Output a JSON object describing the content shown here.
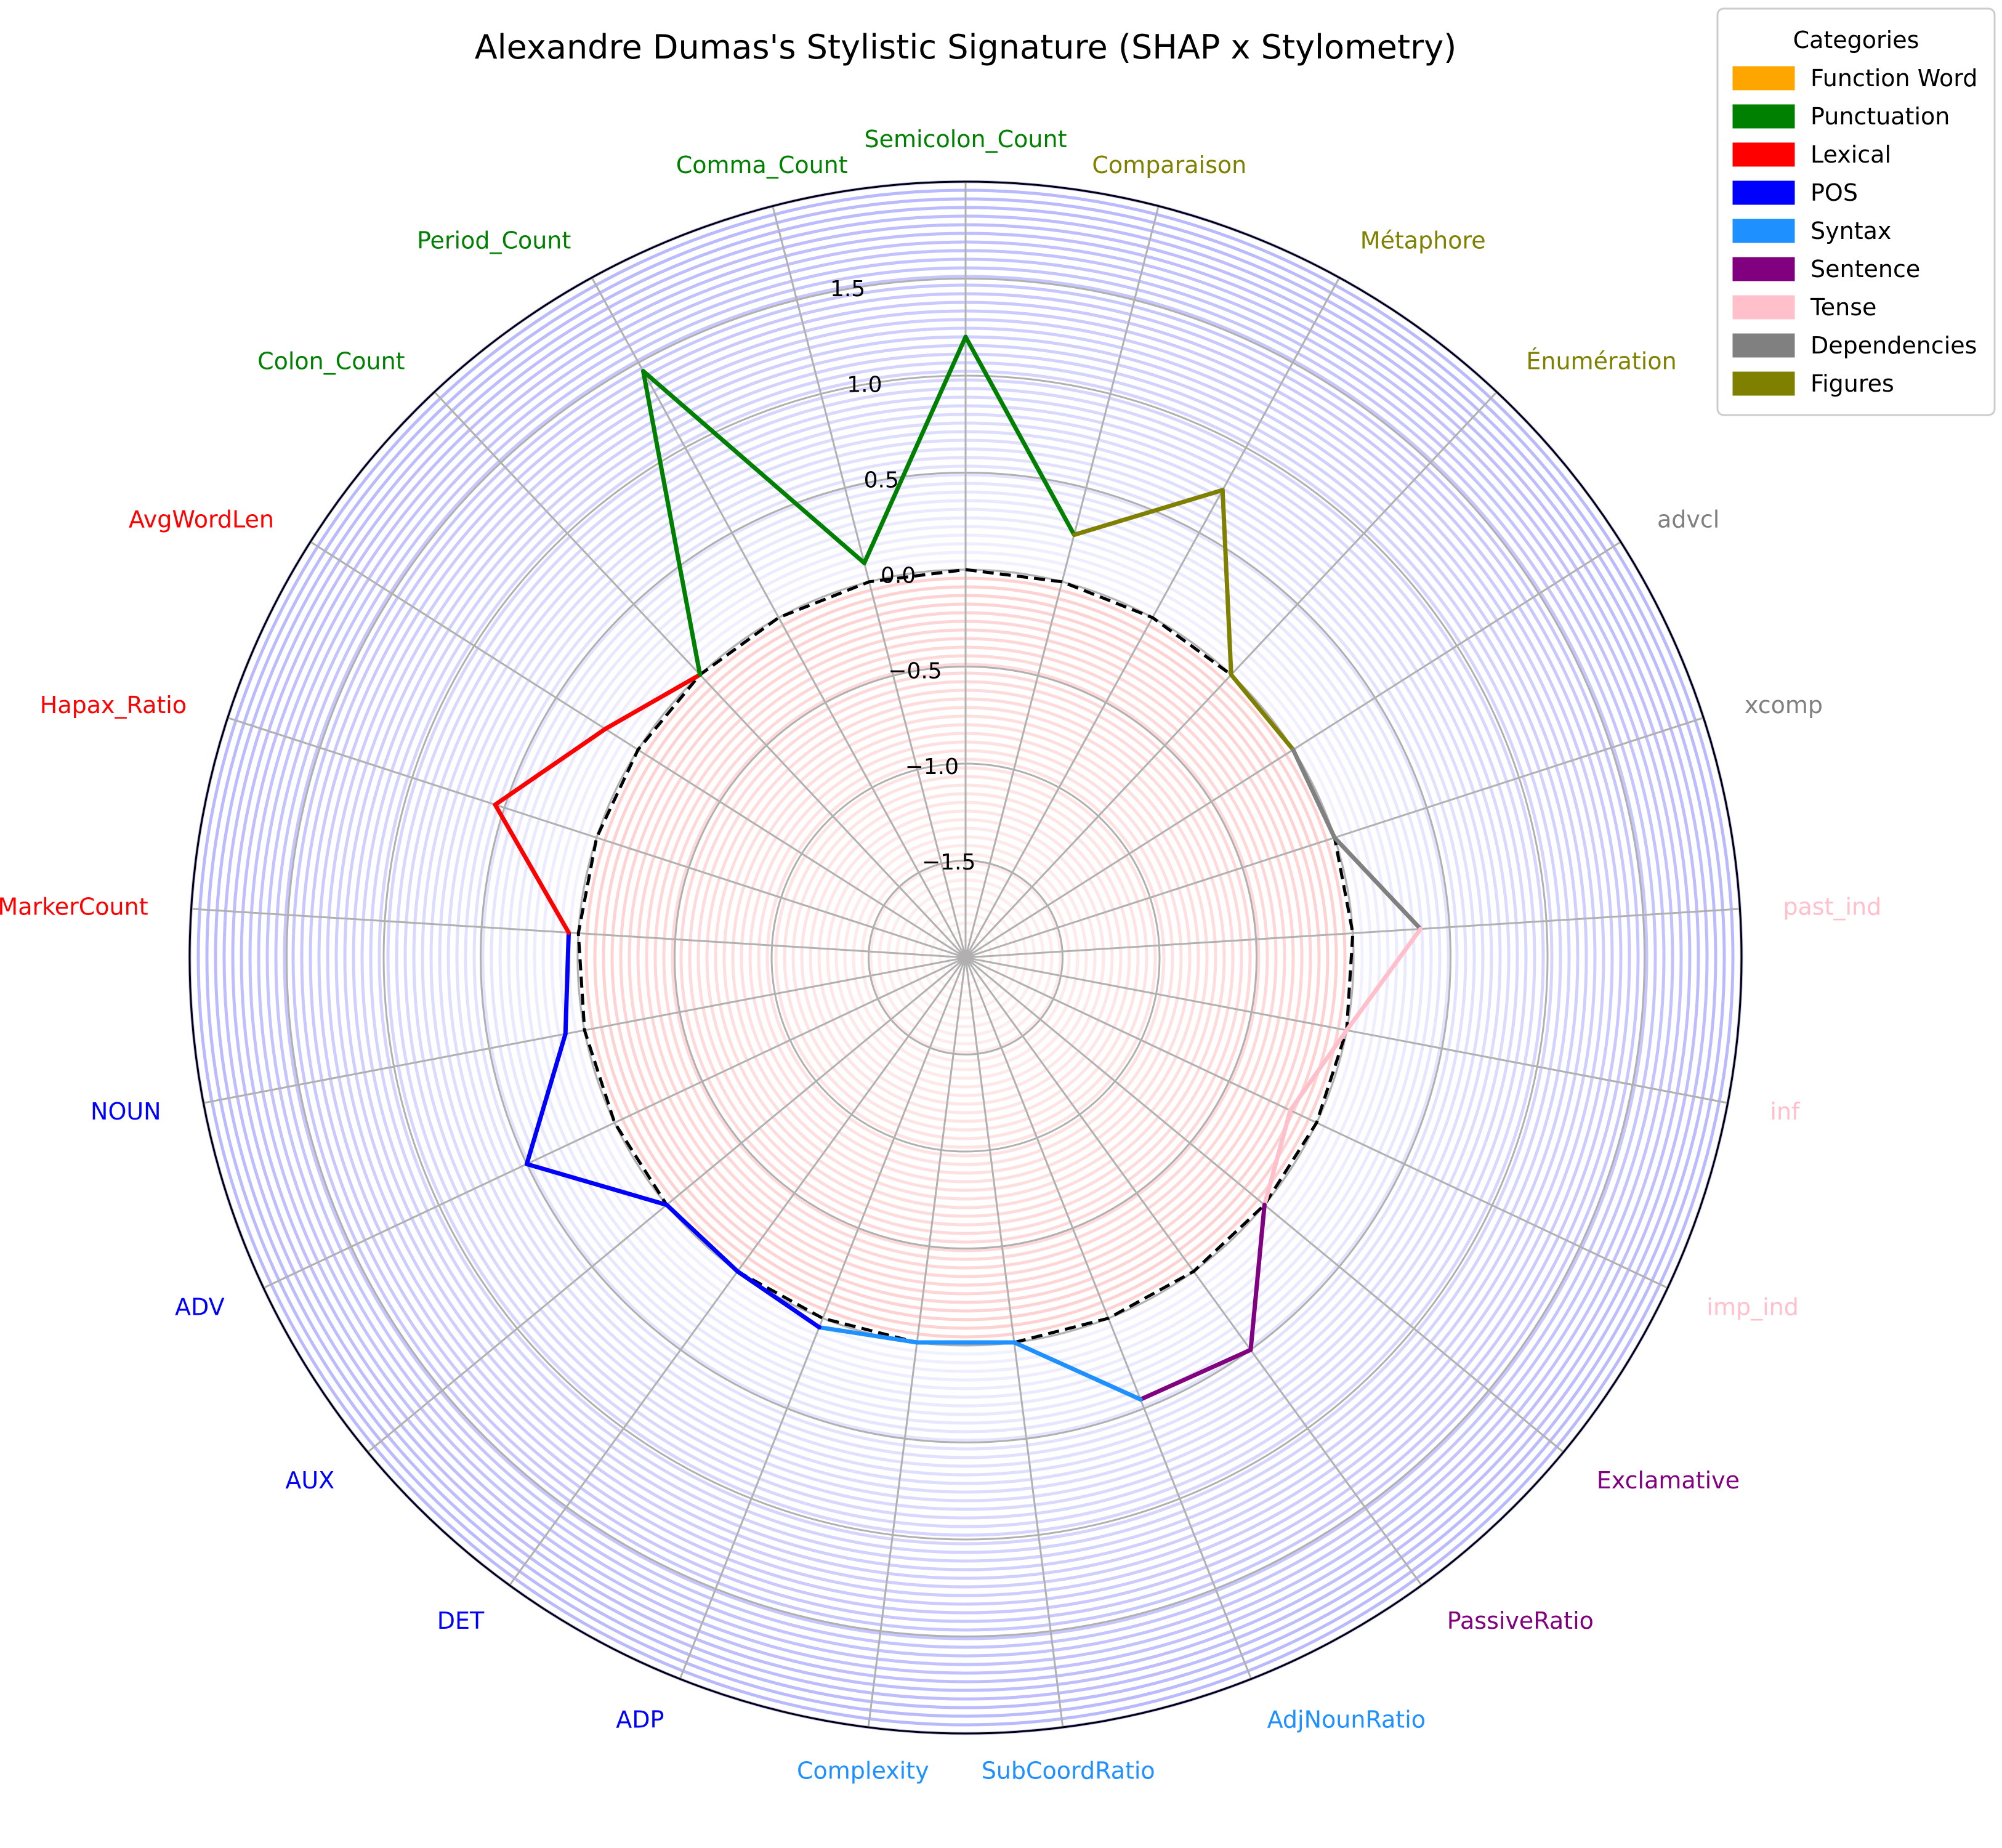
{
  "chart_data": {
    "type": "radar",
    "title": "Alexandre Dumas's Stylistic Signature (SHAP x Stylometry)",
    "rlim": [
      -2.0,
      2.0
    ],
    "r_ticks": [
      -1.5,
      -1.0,
      -0.5,
      0.0,
      0.5,
      1.0,
      1.5
    ],
    "r_tick_labels": [
      "−1.5",
      "−1.0",
      "−0.5",
      "0.0",
      "0.5",
      "1.0",
      "1.5"
    ],
    "baseline": 0.0,
    "grid": true,
    "legend": {
      "title": "Categories",
      "placement": "top-right",
      "entries": [
        {
          "name": "Function Word",
          "color": "#ffa500"
        },
        {
          "name": "Punctuation",
          "color": "#008000"
        },
        {
          "name": "Lexical",
          "color": "#ff0000"
        },
        {
          "name": "POS",
          "color": "#0000ff"
        },
        {
          "name": "Syntax",
          "color": "#1e90ff"
        },
        {
          "name": "Sentence",
          "color": "#800080"
        },
        {
          "name": "Tense",
          "color": "#ffc0cb"
        },
        {
          "name": "Dependencies",
          "color": "#808080"
        },
        {
          "name": "Figures",
          "color": "#808000"
        }
      ]
    },
    "features": [
      {
        "label": "Semicolon_Count",
        "category": "Punctuation",
        "value": 1.2
      },
      {
        "label": "Comparaison",
        "category": "Figures",
        "value": 0.25
      },
      {
        "label": "Métaphore",
        "category": "Figures",
        "value": 0.75
      },
      {
        "label": "Énumération",
        "category": "Figures",
        "value": 0.0
      },
      {
        "label": "advcl",
        "category": "Dependencies",
        "value": 0.0
      },
      {
        "label": "xcomp",
        "category": "Dependencies",
        "value": 0.0
      },
      {
        "label": "past_ind",
        "category": "Tense",
        "value": 0.35
      },
      {
        "label": "inf",
        "category": "Tense",
        "value": 0.0
      },
      {
        "label": "imp_ind",
        "category": "Tense",
        "value": -0.15
      },
      {
        "label": "Exclamative",
        "category": "Sentence",
        "value": 0.0
      },
      {
        "label": "PassiveRatio",
        "category": "Sentence",
        "value": 0.5
      },
      {
        "label": "AdjNounRatio",
        "category": "Syntax",
        "value": 0.45
      },
      {
        "label": "SubCoordRatio",
        "category": "Syntax",
        "value": 0.0
      },
      {
        "label": "Complexity",
        "category": "Syntax",
        "value": 0.0
      },
      {
        "label": "ADP",
        "category": "POS",
        "value": 0.05
      },
      {
        "label": "DET",
        "category": "POS",
        "value": 0.0
      },
      {
        "label": "AUX",
        "category": "POS",
        "value": 0.0
      },
      {
        "label": "ADV",
        "category": "POS",
        "value": 0.5
      },
      {
        "label": "NOUN",
        "category": "POS",
        "value": 0.1
      },
      {
        "label": "MarkerCount",
        "category": "Lexical",
        "value": 0.05
      },
      {
        "label": "Hapax_Ratio",
        "category": "Lexical",
        "value": 0.55
      },
      {
        "label": "AvgWordLen",
        "category": "Lexical",
        "value": 0.2
      },
      {
        "label": "Colon_Count",
        "category": "Punctuation",
        "value": 0.0
      },
      {
        "label": "Period_Count",
        "category": "Punctuation",
        "value": 1.45
      },
      {
        "label": "Comma_Count",
        "category": "Punctuation",
        "value": 0.1
      }
    ]
  }
}
